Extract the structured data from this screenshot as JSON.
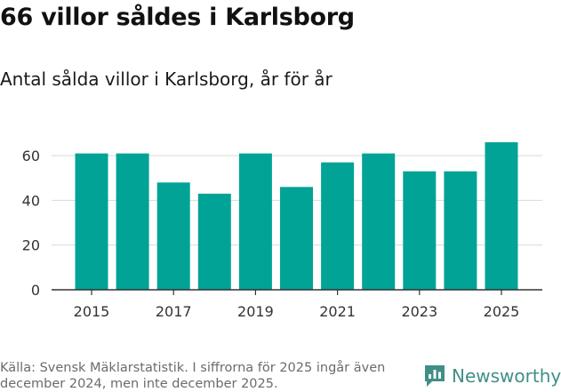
{
  "header": {
    "title": "66 villor såldes i Karlsborg",
    "subtitle": "Antal sålda villor i Karlsborg, år för år"
  },
  "footer": {
    "source": "Källa: Svensk Mäklarstatistik. I siffrorna för 2025 ingår även december 2024, men inte december 2025.",
    "brand": "Newsworthy",
    "brand_icon": "newsworthy-logo-icon"
  },
  "colors": {
    "bar": "#00a396",
    "grid": "#d9d9d9",
    "axis": "#333333",
    "brand": "#3f8f88"
  },
  "chart_data": {
    "type": "bar",
    "title": "66 villor såldes i Karlsborg",
    "subtitle": "Antal sålda villor i Karlsborg, år för år",
    "xlabel": "",
    "ylabel": "",
    "categories": [
      2015,
      2016,
      2017,
      2018,
      2019,
      2020,
      2021,
      2022,
      2023,
      2024,
      2025
    ],
    "values": [
      61,
      61,
      48,
      43,
      61,
      46,
      57,
      61,
      53,
      53,
      66
    ],
    "x_tick_labels": [
      "2015",
      "2017",
      "2019",
      "2021",
      "2023",
      "2025"
    ],
    "y_ticks": [
      0,
      20,
      40,
      60
    ],
    "ylim": [
      0,
      70
    ],
    "grid": true
  }
}
